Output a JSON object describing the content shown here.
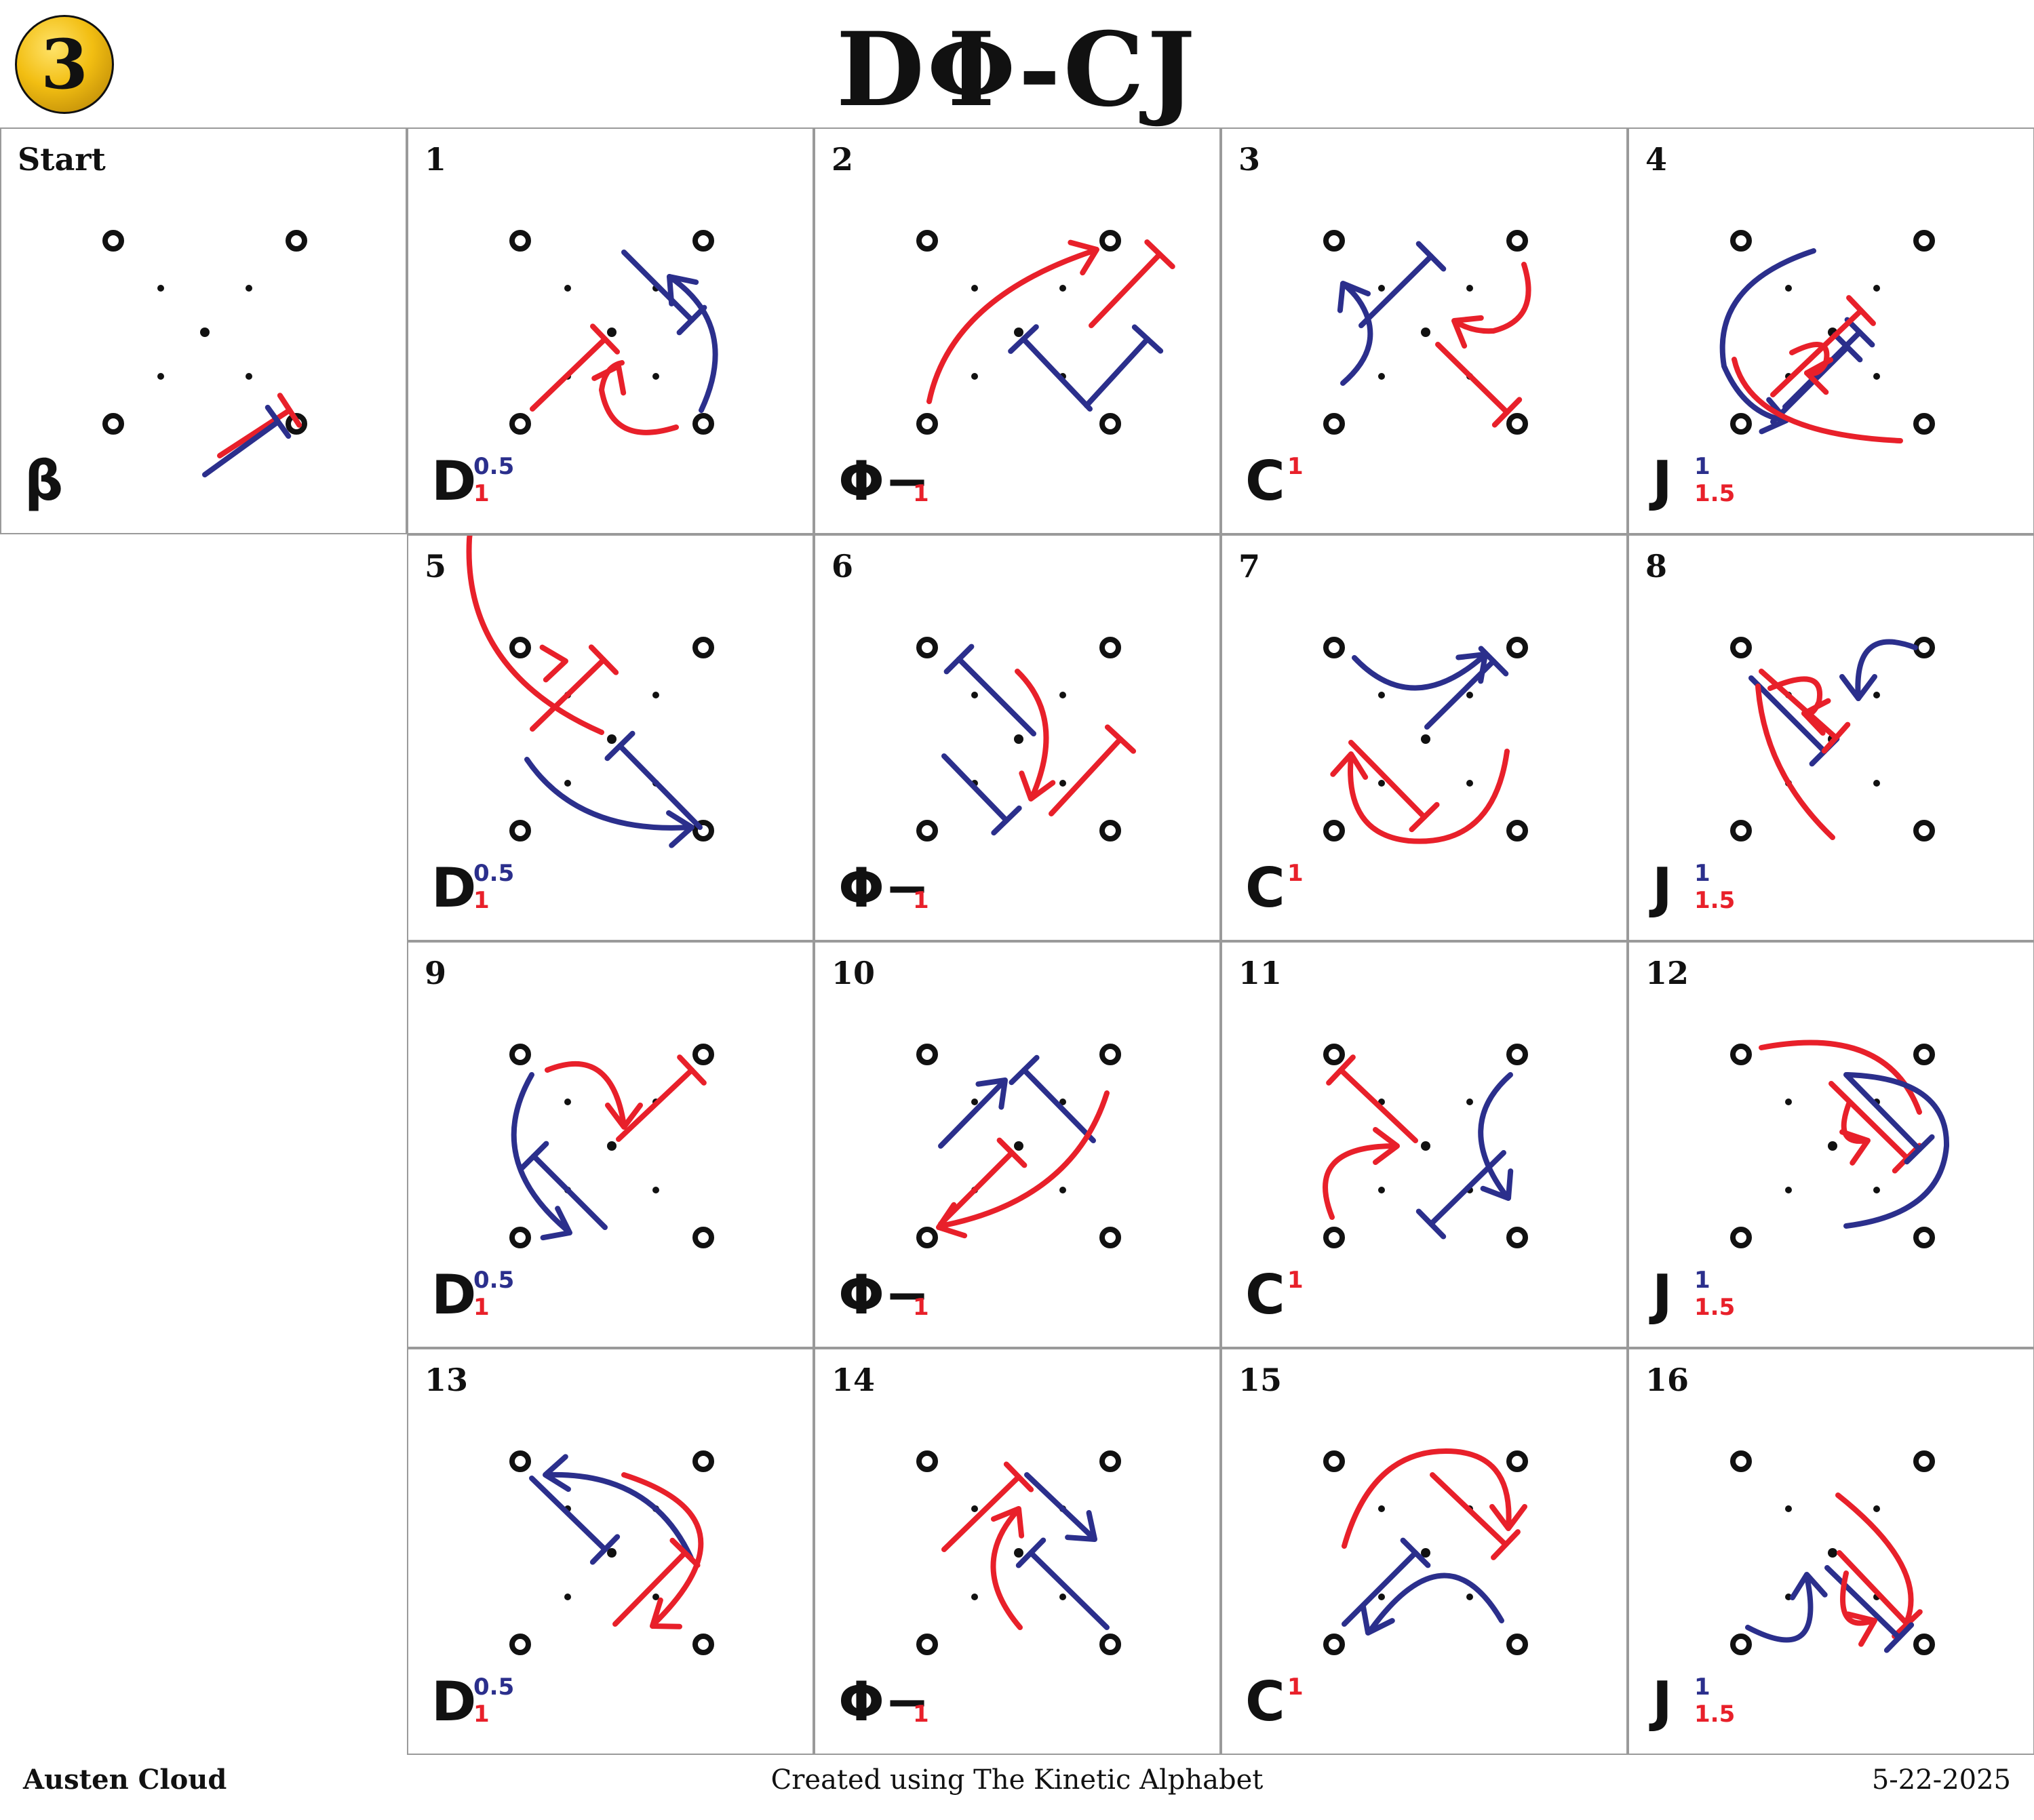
{
  "header": {
    "badge_number": "3",
    "title": "DΦ-CJ"
  },
  "colors": {
    "red": "#e8202a",
    "blue": "#2b2f8c",
    "black": "#111111",
    "grid_border": "#9a9a9a",
    "badge_gold": "#f2be12"
  },
  "cells": [
    {
      "label": "Start",
      "notation": {
        "main": "β",
        "sup": "",
        "sub": "",
        "sup_color": "blue",
        "sub_color": "red"
      }
    },
    {
      "label": "1",
      "notation": {
        "main": "D",
        "sup": "0.5",
        "sub": "1",
        "sup_color": "blue",
        "sub_color": "red"
      }
    },
    {
      "label": "2",
      "notation": {
        "main": "Φ−",
        "sup": "",
        "sub": "1",
        "sup_color": "blue",
        "sub_color": "red"
      }
    },
    {
      "label": "3",
      "notation": {
        "main": "C",
        "sup": "1",
        "sub": "",
        "sup_color": "red",
        "sub_color": "red"
      }
    },
    {
      "label": "4",
      "notation": {
        "main": "J",
        "sup": "1",
        "sub": "1.5",
        "sup_color": "blue",
        "sub_color": "red"
      }
    },
    {
      "label": "5",
      "notation": {
        "main": "D",
        "sup": "0.5",
        "sub": "1",
        "sup_color": "blue",
        "sub_color": "red"
      }
    },
    {
      "label": "6",
      "notation": {
        "main": "Φ−",
        "sup": "",
        "sub": "1",
        "sup_color": "blue",
        "sub_color": "red"
      }
    },
    {
      "label": "7",
      "notation": {
        "main": "C",
        "sup": "1",
        "sub": "",
        "sup_color": "red",
        "sub_color": "red"
      }
    },
    {
      "label": "8",
      "notation": {
        "main": "J",
        "sup": "1",
        "sub": "1.5",
        "sup_color": "blue",
        "sub_color": "red"
      }
    },
    {
      "label": "9",
      "notation": {
        "main": "D",
        "sup": "0.5",
        "sub": "1",
        "sup_color": "blue",
        "sub_color": "red"
      }
    },
    {
      "label": "10",
      "notation": {
        "main": "Φ−",
        "sup": "",
        "sub": "1",
        "sup_color": "blue",
        "sub_color": "red"
      }
    },
    {
      "label": "11",
      "notation": {
        "main": "C",
        "sup": "1",
        "sub": "",
        "sup_color": "red",
        "sub_color": "red"
      }
    },
    {
      "label": "12",
      "notation": {
        "main": "J",
        "sup": "1",
        "sub": "1.5",
        "sup_color": "blue",
        "sub_color": "red"
      }
    },
    {
      "label": "13",
      "notation": {
        "main": "D",
        "sup": "0.5",
        "sub": "1",
        "sup_color": "blue",
        "sub_color": "red"
      }
    },
    {
      "label": "14",
      "notation": {
        "main": "Φ−",
        "sup": "",
        "sub": "1",
        "sup_color": "blue",
        "sub_color": "red"
      }
    },
    {
      "label": "15",
      "notation": {
        "main": "C",
        "sup": "1",
        "sub": "",
        "sup_color": "red",
        "sub_color": "red"
      }
    },
    {
      "label": "16",
      "notation": {
        "main": "J",
        "sup": "1",
        "sub": "1.5",
        "sup_color": "blue",
        "sub_color": "red"
      }
    }
  ],
  "footer": {
    "author": "Austen Cloud",
    "credit": "Created using The Kinetic Alphabet",
    "date": "5-22-2025"
  }
}
